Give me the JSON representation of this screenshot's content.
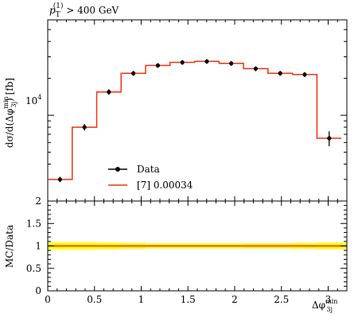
{
  "chart_data": [
    {
      "type": "line",
      "title": "p_T^(1) > 400 GeV",
      "title_parts": {
        "symbol": "p",
        "sub": "T",
        "sup": "(1)",
        "rest": " > 400 GeV"
      },
      "ylabel": "dσ/d(Δφ_3j^min) [fb]",
      "ylabel_parts": {
        "a": "dσ/d(Δφ",
        "sup": "min",
        "sub": "3j",
        "b": ") [fb]"
      },
      "xlabel": "",
      "yscale": "log",
      "ylim": [
        2000,
        60000
      ],
      "xlim": [
        0,
        3.2
      ],
      "y_tick_labels": [
        "10^4"
      ],
      "y_tick_label_parts": {
        "base": "10",
        "exp": "4"
      },
      "legend_position": "lower-center",
      "legend": [
        {
          "key": "data",
          "label": "Data",
          "color": "#000000"
        },
        {
          "key": "mc",
          "label": "[7] 0.00034",
          "color": "#ee3311"
        }
      ],
      "bin_edges": [
        0.0,
        0.262,
        0.524,
        0.785,
        1.047,
        1.309,
        1.571,
        1.833,
        2.094,
        2.356,
        2.618,
        2.88,
        3.142
      ],
      "series": [
        {
          "name": "Data",
          "type": "points",
          "x": [
            0.131,
            0.393,
            0.654,
            0.916,
            1.178,
            1.44,
            1.702,
            1.963,
            2.225,
            2.487,
            2.749,
            3.011
          ],
          "values": [
            3000,
            8000,
            15500,
            22000,
            25500,
            27000,
            27500,
            26500,
            24000,
            22000,
            21500,
            18000
          ],
          "errors": [
            150,
            500,
            800,
            1000,
            1100,
            1200,
            1200,
            1200,
            1100,
            1000,
            1000,
            900
          ]
        },
        {
          "name": "[7] 0.00034",
          "type": "histogram",
          "values": [
            3000,
            8000,
            15500,
            22000,
            25500,
            27000,
            27500,
            26500,
            24000,
            22000,
            21500,
            18000
          ]
        }
      ],
      "last_bin_value": 6500
    },
    {
      "type": "line",
      "ylabel": "MC/Data",
      "xlabel": "Δφ_3j^min",
      "xlabel_parts": {
        "a": "Δφ",
        "sup": "min",
        "sub": "3j"
      },
      "xlim": [
        0,
        3.2
      ],
      "ylim": [
        0,
        2
      ],
      "x_ticks": [
        0,
        0.5,
        1,
        1.5,
        2,
        2.5,
        3
      ],
      "x_tick_labels": [
        "0",
        "0.5",
        "1",
        "1.5",
        "2",
        "2.5",
        "3"
      ],
      "y_ticks": [
        0,
        0.5,
        1,
        1.5,
        2
      ],
      "y_tick_labels": [
        "0",
        "0.5",
        "1",
        "1.5",
        "2"
      ],
      "series": [
        {
          "name": "ratio",
          "values": [
            1,
            1,
            1,
            1,
            1,
            1,
            1,
            1,
            1,
            1,
            1,
            1
          ],
          "color": "#ee3311"
        }
      ],
      "uncertainty_band": {
        "inner_color": "#f2e000",
        "outer_color": "#ffff44",
        "inner_half_width": [
          0.04,
          0.04,
          0.04,
          0.04,
          0.035,
          0.035,
          0.035,
          0.035,
          0.04,
          0.04,
          0.04,
          0.04
        ],
        "outer_half_width": [
          0.09,
          0.09,
          0.08,
          0.07,
          0.06,
          0.06,
          0.06,
          0.06,
          0.06,
          0.06,
          0.07,
          0.08
        ]
      }
    }
  ]
}
